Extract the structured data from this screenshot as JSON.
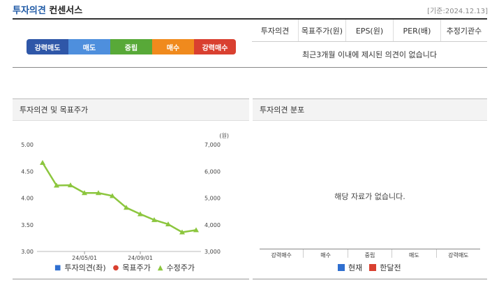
{
  "header": {
    "title_accent": "투자의견",
    "title_rest": "컨센서스",
    "date": "[기준:2024.12.13]"
  },
  "rating_scale": [
    {
      "label": "강력매도",
      "color": "#2f57a8"
    },
    {
      "label": "매도",
      "color": "#4e8fdd"
    },
    {
      "label": "중립",
      "color": "#58a938"
    },
    {
      "label": "매수",
      "color": "#f08a1d"
    },
    {
      "label": "강력매수",
      "color": "#d94030"
    }
  ],
  "consensus_table": {
    "columns": [
      "투자의견",
      "목표주가(원)",
      "EPS(원)",
      "PER(배)",
      "추정기관수"
    ],
    "empty_message": "최근3개월 이내에 제시된 의견이 없습니다"
  },
  "left_panel": {
    "title": "투자의견 및 목표주가",
    "legend": [
      {
        "label": "투자의견(좌)",
        "color": "#2f6fd0"
      },
      {
        "label": "목표주가",
        "color": "#d94030"
      },
      {
        "label": "수정주가",
        "color": "#8cc63e"
      }
    ]
  },
  "right_panel": {
    "title": "투자의견 분포",
    "empty_message": "해당 자료가 없습니다.",
    "categories": [
      "강력매수",
      "매수",
      "중립",
      "매도",
      "강력매도"
    ],
    "legend": [
      {
        "label": "현재",
        "color": "#2f6fd0"
      },
      {
        "label": "한달전",
        "color": "#d94030"
      }
    ]
  },
  "chart_data": {
    "type": "line",
    "x_ticks": [
      "24/05/01",
      "24/09/01"
    ],
    "y_left": {
      "range": [
        3.0,
        5.0
      ],
      "ticks": [
        "5.00",
        "4.50",
        "4.00",
        "3.50",
        "3.00"
      ]
    },
    "y_right": {
      "label": "(원)",
      "range": [
        3000,
        7000
      ],
      "ticks": [
        "7,000",
        "6,000",
        "5,000",
        "4,000",
        "3,000"
      ]
    },
    "series": [
      {
        "name": "수정주가",
        "axis": "right",
        "color": "#8cc63e",
        "values": [
          6320,
          5470,
          5480,
          5190,
          5190,
          5080,
          4640,
          4400,
          4180,
          4020,
          3720,
          3800
        ]
      }
    ]
  }
}
